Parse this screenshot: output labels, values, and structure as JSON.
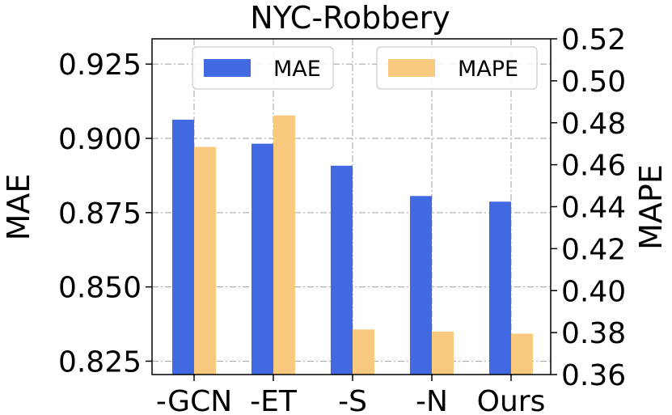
{
  "chart_data": {
    "type": "bar",
    "title": "NYC-Robbery",
    "categories": [
      "-GCN",
      "-ET",
      "-S",
      "-N",
      "Ours"
    ],
    "series": [
      {
        "name": "MAE",
        "axis": "left",
        "color": "#4169e1",
        "values": [
          0.9063,
          0.8982,
          0.8908,
          0.8806,
          0.8787
        ]
      },
      {
        "name": "MAPE",
        "axis": "right",
        "color": "#f8c97f",
        "values": [
          0.4685,
          0.4835,
          0.3815,
          0.3805,
          0.3795
        ]
      }
    ],
    "ylabel": "MAE",
    "y2label": "MAPE",
    "ylim": [
      0.8205,
      0.9335
    ],
    "y2lim": [
      0.36,
      0.52
    ],
    "yticks": [
      "0.825",
      "0.850",
      "0.875",
      "0.900",
      "0.925"
    ],
    "y2ticks": [
      "0.36",
      "0.38",
      "0.40",
      "0.42",
      "0.44",
      "0.46",
      "0.48",
      "0.50",
      "0.52"
    ],
    "grid": true,
    "legend": "top"
  }
}
